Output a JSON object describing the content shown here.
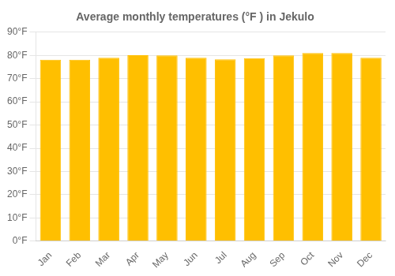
{
  "chart_data": {
    "type": "bar",
    "title": "Average monthly temperatures (°F ) in Jekulo",
    "categories": [
      "Jan",
      "Feb",
      "Mar",
      "Apr",
      "May",
      "Jun",
      "Jul",
      "Aug",
      "Sep",
      "Oct",
      "Nov",
      "Dec"
    ],
    "values": [
      78.1,
      78.1,
      79.0,
      80.1,
      80.0,
      79.0,
      78.3,
      78.8,
      80.0,
      81.0,
      81.0,
      79.0
    ],
    "color": "#FFBF00",
    "ylim": [
      0,
      90
    ],
    "yticks": [
      {
        "value": 0,
        "label": "0°F"
      },
      {
        "value": 10,
        "label": "10°F"
      },
      {
        "value": 20,
        "label": "20°F"
      },
      {
        "value": 30,
        "label": "30°F"
      },
      {
        "value": 40,
        "label": "40°F"
      },
      {
        "value": 50,
        "label": "50°F"
      },
      {
        "value": 60,
        "label": "60°F"
      },
      {
        "value": 70,
        "label": "70°F"
      },
      {
        "value": 80,
        "label": "80°F"
      },
      {
        "value": 90,
        "label": "90°F"
      }
    ],
    "grid": true
  }
}
